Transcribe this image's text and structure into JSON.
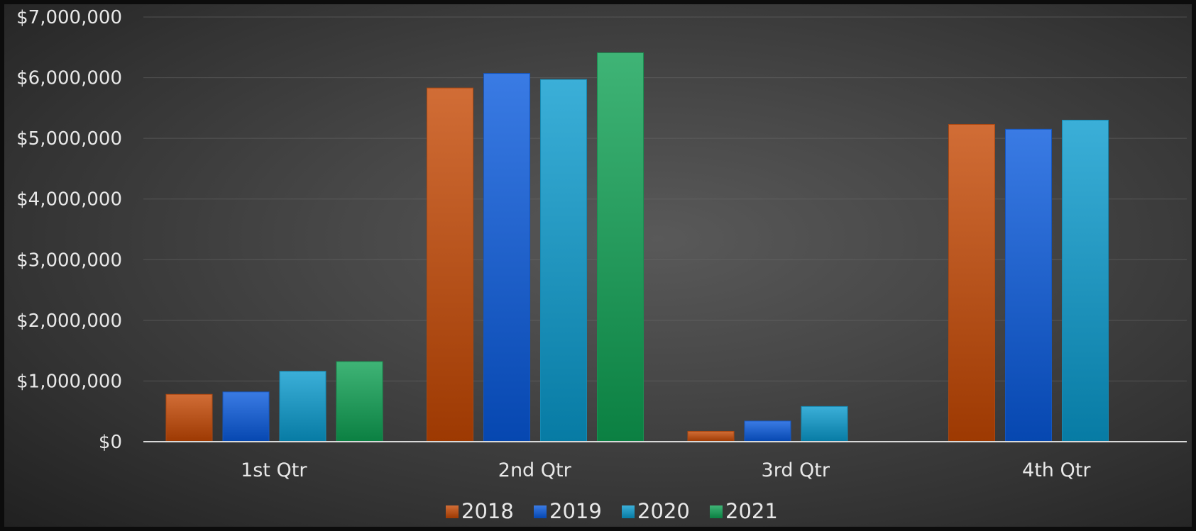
{
  "chart_data": {
    "type": "bar",
    "title": "",
    "xlabel": "",
    "ylabel": "",
    "categories": [
      "1st Qtr",
      "2nd Qtr",
      "3rd Qtr",
      "4th Qtr"
    ],
    "series": [
      {
        "name": "2018",
        "values": [
          780000,
          5830000,
          170000,
          5230000
        ],
        "color": "#c5612a"
      },
      {
        "name": "2019",
        "values": [
          820000,
          6070000,
          340000,
          5150000
        ],
        "color": "#2e6fd8"
      },
      {
        "name": "2020",
        "values": [
          1160000,
          5970000,
          580000,
          5300000
        ],
        "color": "#2fa3cc"
      },
      {
        "name": "2021",
        "values": [
          1320000,
          6410000,
          null,
          null
        ],
        "color": "#33a86a"
      }
    ],
    "ylim": [
      0,
      7000000
    ],
    "yticks": [
      0,
      1000000,
      2000000,
      3000000,
      4000000,
      5000000,
      6000000,
      7000000
    ],
    "ytick_labels": [
      "$0",
      "$1,000,000",
      "$2,000,000",
      "$3,000,000",
      "$4,000,000",
      "$5,000,000",
      "$6,000,000",
      "$7,000,000"
    ],
    "grid": true,
    "legend_position": "bottom"
  }
}
